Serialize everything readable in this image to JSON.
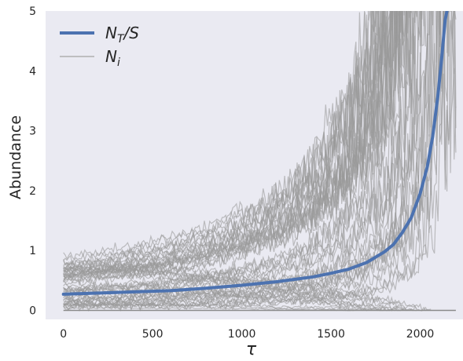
{
  "chart_data": {
    "type": "line",
    "title": "",
    "xlabel": "τ",
    "ylabel": "Abundance",
    "xlim": [
      -100,
      2240
    ],
    "ylim": [
      -0.15,
      5
    ],
    "xticks": [
      0,
      500,
      1000,
      1500,
      2000
    ],
    "xtick_labels": [
      "0",
      "500",
      "1000",
      "1500",
      "2000"
    ],
    "yticks": [
      0,
      1,
      2,
      3,
      4,
      5
    ],
    "ytick_labels": [
      "0",
      "1",
      "2",
      "3",
      "4",
      "5"
    ],
    "grid": false,
    "background": "#EAEAF2",
    "legend": {
      "placement": "top-left",
      "entries": [
        {
          "label_base": "N",
          "label_sub": "T",
          "label_tail": "/S",
          "color": "#4C72B0"
        },
        {
          "label_base": "N",
          "label_sub": "i",
          "label_tail": "",
          "color": "#B0B0B0"
        }
      ]
    },
    "series": [
      {
        "name": "N_T/S",
        "color": "#4C72B0",
        "x": [
          0,
          200,
          400,
          600,
          800,
          1000,
          1200,
          1400,
          1500,
          1600,
          1700,
          1800,
          1850,
          1900,
          1950,
          2000,
          2040,
          2070,
          2100,
          2120,
          2140,
          2150
        ],
        "y": [
          0.27,
          0.29,
          0.31,
          0.33,
          0.37,
          0.42,
          0.48,
          0.56,
          0.62,
          0.69,
          0.8,
          0.98,
          1.1,
          1.3,
          1.55,
          1.95,
          2.4,
          2.9,
          3.6,
          4.2,
          4.85,
          5.0
        ]
      }
    ],
    "individual_series": {
      "name": "N_i",
      "color": "#9A9A9A",
      "count": 55,
      "x_end": 2200,
      "y_start_range": [
        0.0,
        0.9
      ],
      "blowup_x_range": [
        1950,
        2200
      ],
      "extinction_lines": 12
    }
  }
}
